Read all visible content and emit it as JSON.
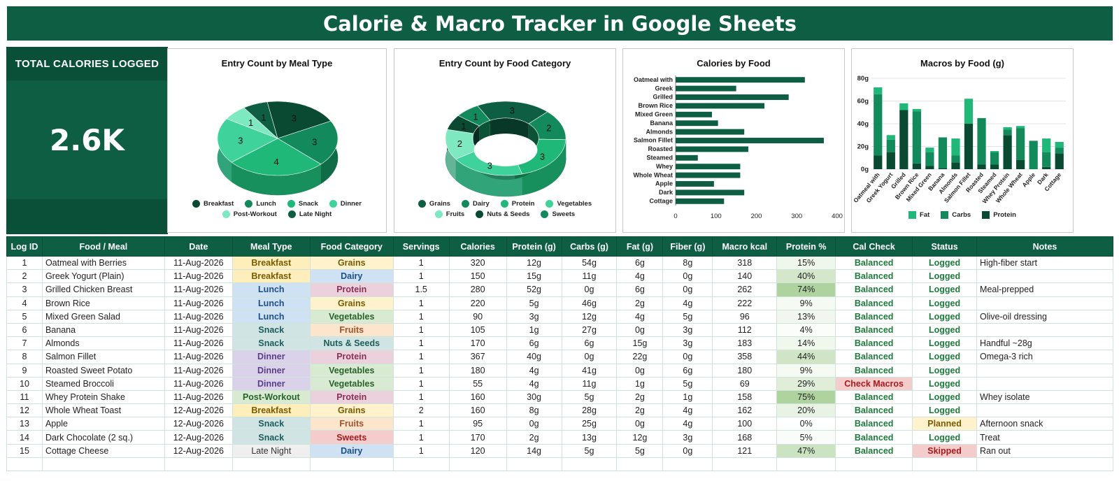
{
  "title": "Calorie & Macro Tracker in Google Sheets",
  "kpi": {
    "label": "TOTAL CALORIES LOGGED",
    "value": "2.6K"
  },
  "colors": {
    "c1": "#0d5e42",
    "c2": "#128a5b",
    "c3": "#1fb878",
    "c4": "#3fd39b",
    "c5": "#7ee8c0",
    "c6": "#0a4a33"
  },
  "chart_data": [
    {
      "type": "pie",
      "title": "Entry Count by Meal Type",
      "categories": [
        "Breakfast",
        "Lunch",
        "Snack",
        "Dinner",
        "Post-Workout",
        "Late Night"
      ],
      "values": [
        3,
        3,
        4,
        3,
        1,
        1
      ],
      "legend_position": "bottom"
    },
    {
      "type": "pie",
      "subtype": "donut",
      "title": "Entry Count by Food Category",
      "categories": [
        "Grains",
        "Dairy",
        "Protein",
        "Vegetables",
        "Fruits",
        "Nuts & Seeds",
        "Sweets"
      ],
      "values": [
        3,
        2,
        3,
        3,
        2,
        1,
        1
      ],
      "legend_position": "bottom"
    },
    {
      "type": "bar",
      "orientation": "horizontal",
      "title": "Calories by Food",
      "categories": [
        "Oatmeal with",
        "Greek",
        "Grilled",
        "Brown Rice",
        "Mixed Green",
        "Banana",
        "Almonds",
        "Salmon Fillet",
        "Roasted",
        "Steamed",
        "Whey",
        "Whole Wheat",
        "Apple",
        "Dark",
        "Cottage"
      ],
      "values": [
        320,
        150,
        280,
        220,
        90,
        105,
        170,
        367,
        180,
        55,
        160,
        160,
        95,
        170,
        120
      ],
      "xlim": [
        0,
        400
      ],
      "xticks": [
        0,
        100,
        200,
        300,
        400
      ],
      "grid": false
    },
    {
      "type": "bar",
      "subtype": "stacked",
      "title": "Macros by Food (g)",
      "categories": [
        "Oatmeal with",
        "Greek Yogurt",
        "Grilled",
        "Brown Rice",
        "Mixed Green",
        "Banana",
        "Almonds",
        "Salmon Fillet",
        "Roasted",
        "Steamed",
        "Whey Protein",
        "Whole Wheat",
        "Apple",
        "Dark",
        "Cottage"
      ],
      "series": [
        {
          "name": "Protein",
          "values": [
            12,
            15,
            52,
            5,
            3,
            1,
            6,
            40,
            4,
            4,
            30,
            8,
            0,
            2,
            14
          ]
        },
        {
          "name": "Carbs",
          "values": [
            54,
            11,
            0,
            46,
            12,
            27,
            6,
            0,
            41,
            11,
            5,
            28,
            25,
            13,
            5
          ]
        },
        {
          "name": "Fat",
          "values": [
            6,
            4,
            6,
            2,
            4,
            0,
            15,
            22,
            0,
            1,
            2,
            2,
            0,
            12,
            5
          ]
        }
      ],
      "ylim": [
        0,
        80
      ],
      "yticks": [
        "0g",
        "20g",
        "40g",
        "60g",
        "80g"
      ],
      "legend_position": "bottom",
      "grid": true
    }
  ],
  "table": {
    "headers": [
      "Log ID",
      "Food / Meal",
      "Date",
      "Meal Type",
      "Food Category",
      "Servings",
      "Calories",
      "Protein (g)",
      "Carbs (g)",
      "Fat (g)",
      "Fiber (g)",
      "Macro kcal",
      "Protein %",
      "Cal Check",
      "Status",
      "Notes"
    ],
    "rows": [
      [
        "1",
        "Oatmeal with Berries",
        "11-Aug-2026",
        "Breakfast",
        "Grains",
        "1",
        "320",
        "12g",
        "54g",
        "6g",
        "8g",
        "318",
        "15%",
        "Balanced",
        "Logged",
        "High-fiber start"
      ],
      [
        "2",
        "Greek Yogurt (Plain)",
        "11-Aug-2026",
        "Breakfast",
        "Dairy",
        "1",
        "150",
        "15g",
        "11g",
        "4g",
        "0g",
        "140",
        "40%",
        "Balanced",
        "Logged",
        ""
      ],
      [
        "3",
        "Grilled Chicken Breast",
        "11-Aug-2026",
        "Lunch",
        "Protein",
        "1.5",
        "280",
        "52g",
        "0g",
        "6g",
        "0g",
        "262",
        "74%",
        "Balanced",
        "Logged",
        "Meal-prepped"
      ],
      [
        "4",
        "Brown Rice",
        "11-Aug-2026",
        "Lunch",
        "Grains",
        "1",
        "220",
        "5g",
        "46g",
        "2g",
        "4g",
        "222",
        "9%",
        "Balanced",
        "Logged",
        ""
      ],
      [
        "5",
        "Mixed Green Salad",
        "11-Aug-2026",
        "Lunch",
        "Vegetables",
        "1",
        "90",
        "3g",
        "12g",
        "4g",
        "5g",
        "96",
        "13%",
        "Balanced",
        "Logged",
        "Olive-oil dressing"
      ],
      [
        "6",
        "Banana",
        "11-Aug-2026",
        "Snack",
        "Fruits",
        "1",
        "105",
        "1g",
        "27g",
        "0g",
        "3g",
        "112",
        "4%",
        "Balanced",
        "Logged",
        ""
      ],
      [
        "7",
        "Almonds",
        "11-Aug-2026",
        "Snack",
        "Nuts & Seeds",
        "1",
        "170",
        "6g",
        "6g",
        "15g",
        "3g",
        "183",
        "14%",
        "Balanced",
        "Logged",
        "Handful ~28g"
      ],
      [
        "8",
        "Salmon Fillet",
        "11-Aug-2026",
        "Dinner",
        "Protein",
        "1",
        "367",
        "40g",
        "0g",
        "22g",
        "0g",
        "358",
        "44%",
        "Balanced",
        "Logged",
        "Omega-3 rich"
      ],
      [
        "9",
        "Roasted Sweet Potato",
        "11-Aug-2026",
        "Dinner",
        "Vegetables",
        "1",
        "180",
        "4g",
        "41g",
        "0g",
        "6g",
        "180",
        "9%",
        "Balanced",
        "Logged",
        ""
      ],
      [
        "10",
        "Steamed Broccoli",
        "11-Aug-2026",
        "Dinner",
        "Vegetables",
        "1",
        "55",
        "4g",
        "11g",
        "1g",
        "5g",
        "69",
        "29%",
        "Check Macros",
        "Logged",
        ""
      ],
      [
        "11",
        "Whey Protein Shake",
        "11-Aug-2026",
        "Post-Workout",
        "Protein",
        "1",
        "160",
        "30g",
        "5g",
        "2g",
        "1g",
        "158",
        "75%",
        "Balanced",
        "Logged",
        "Whey isolate"
      ],
      [
        "12",
        "Whole Wheat Toast",
        "12-Aug-2026",
        "Breakfast",
        "Grains",
        "2",
        "160",
        "8g",
        "28g",
        "2g",
        "4g",
        "162",
        "20%",
        "Balanced",
        "Logged",
        ""
      ],
      [
        "13",
        "Apple",
        "12-Aug-2026",
        "Snack",
        "Fruits",
        "1",
        "95",
        "0g",
        "25g",
        "0g",
        "4g",
        "100",
        "0%",
        "Balanced",
        "Planned",
        "Afternoon snack"
      ],
      [
        "14",
        "Dark Chocolate (2 sq.)",
        "12-Aug-2026",
        "Snack",
        "Sweets",
        "1",
        "170",
        "2g",
        "13g",
        "12g",
        "3g",
        "168",
        "5%",
        "Balanced",
        "Logged",
        "Treat"
      ],
      [
        "15",
        "Cottage Cheese",
        "12-Aug-2026",
        "Late Night",
        "Dairy",
        "1",
        "120",
        "14g",
        "5g",
        "5g",
        "0g",
        "121",
        "47%",
        "Balanced",
        "Skipped",
        "Ran out"
      ]
    ]
  }
}
